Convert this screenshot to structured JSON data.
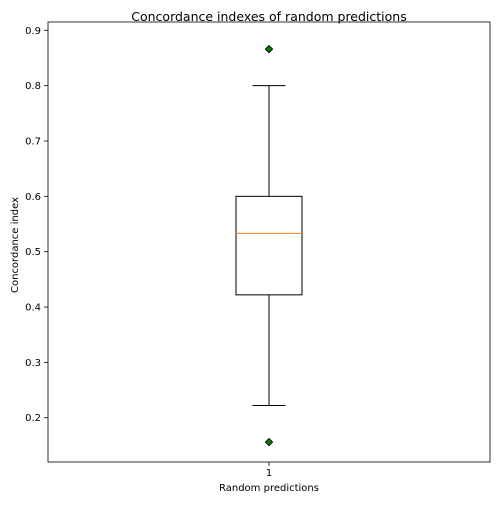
{
  "chart_data": {
    "type": "box",
    "title": "Concordance indexes of random predictions",
    "xlabel": "Random predictions",
    "ylabel": "Concordance index",
    "x_ticks": [
      "1"
    ],
    "y_ticks": [
      "0.2",
      "0.3",
      "0.4",
      "0.5",
      "0.6",
      "0.7",
      "0.8",
      "0.9"
    ],
    "ylim": [
      0.12,
      0.915
    ],
    "grid": false,
    "series": [
      {
        "category": "1",
        "whisker_low": 0.222,
        "q1": 0.422,
        "median": 0.533,
        "q3": 0.6,
        "whisker_high": 0.8,
        "outliers": [
          0.866,
          0.156
        ]
      }
    ],
    "colors": {
      "box": "#000000",
      "median": "#ff7f0e",
      "outlier_fill": "#008000",
      "outlier_edge": "#000000"
    }
  }
}
